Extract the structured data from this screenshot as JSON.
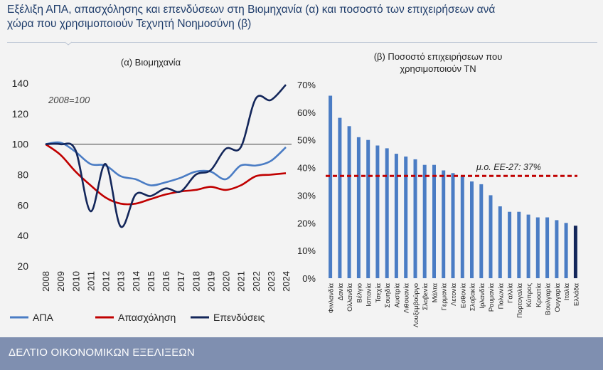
{
  "header": {
    "title_line1": "Εξέλιξη ΑΠΑ, απασχόλησης και επενδύσεων στη Βιομηχανία (α) και ποσοστό των επιχειρήσεων ανά",
    "title_line2": "χώρα που χρησιμοποιούν Τεχνητή Νοημοσύνη (β)"
  },
  "footer": {
    "text": "ΔΕΛΤΙΟ ΟΙΚΟΝΟΜΙΚΩΝ ΕΞΕΛΙΞΕΩΝ"
  },
  "chart_data": [
    {
      "type": "line",
      "title": "(α) Βιομηχανία",
      "annotation": "2008=100",
      "x": [
        "2008",
        "2009",
        "2010",
        "2011",
        "2012",
        "2013",
        "2014",
        "2015",
        "2016",
        "2017",
        "2018",
        "2019",
        "2020",
        "2021",
        "2022",
        "2023",
        "2024"
      ],
      "ylim": [
        20,
        140
      ],
      "yticks": [
        20,
        40,
        60,
        80,
        100,
        120,
        140
      ],
      "reference_line": 100,
      "legend_position": "bottom",
      "series": [
        {
          "name": "ΑΠΑ",
          "color": "#4a7cc4",
          "values": [
            100,
            101,
            95,
            87,
            86,
            79,
            77,
            73,
            75,
            78,
            82,
            82,
            77,
            86,
            86,
            89,
            98
          ]
        },
        {
          "name": "Απασχόληση",
          "color": "#c00000",
          "values": [
            100,
            93,
            82,
            73,
            65,
            61,
            61,
            64,
            67,
            69,
            70,
            72,
            70,
            73,
            79,
            80,
            81
          ]
        },
        {
          "name": "Επενδύσεις",
          "color": "#13265a",
          "values": [
            100,
            100,
            96,
            56,
            87,
            46,
            67,
            66,
            71,
            69,
            80,
            83,
            97,
            98,
            130,
            129,
            139
          ]
        }
      ]
    },
    {
      "type": "bar",
      "title": "(β) Ποσοστό επιχειρήσεων που χρησιμοποιούν ΤΝ",
      "ylim": [
        0,
        70
      ],
      "yticks": [
        0,
        10,
        20,
        30,
        40,
        50,
        60,
        70
      ],
      "ytick_suffix": "%",
      "reference_value": 37,
      "reference_label": "μ.ο. ΕΕ-27: 37%",
      "bar_color": "#4a7cc4",
      "highlight_color": "#13265a",
      "highlight_category": "Ελλάδα",
      "categories": [
        "Φινλανδία",
        "Δανία",
        "Ολλανδία",
        "Βέλγιο",
        "Ισπανία",
        "Τσεχία",
        "Σουηδία",
        "Αυστρία",
        "Λιθουανία",
        "Λουξεμβούργο",
        "Σλοβενία",
        "Μάλτα",
        "Γερμανία",
        "Λετονία",
        "Εσθονία",
        "Σλοβακία",
        "Ιρλανδία",
        "Ρουμανία",
        "Πολωνία",
        "Γαλλία",
        "Πορτογαλία",
        "Κύπρος",
        "Κροατία",
        "Βουλγαρία",
        "Ουγγαρία",
        "Ιταλία",
        "Ελλάδα"
      ],
      "values": [
        66,
        58,
        55,
        51,
        50,
        48,
        47,
        45,
        44,
        43,
        41,
        41,
        39,
        38,
        37,
        35,
        34,
        30,
        26,
        24,
        24,
        23,
        22,
        22,
        21,
        20,
        19
      ]
    }
  ]
}
